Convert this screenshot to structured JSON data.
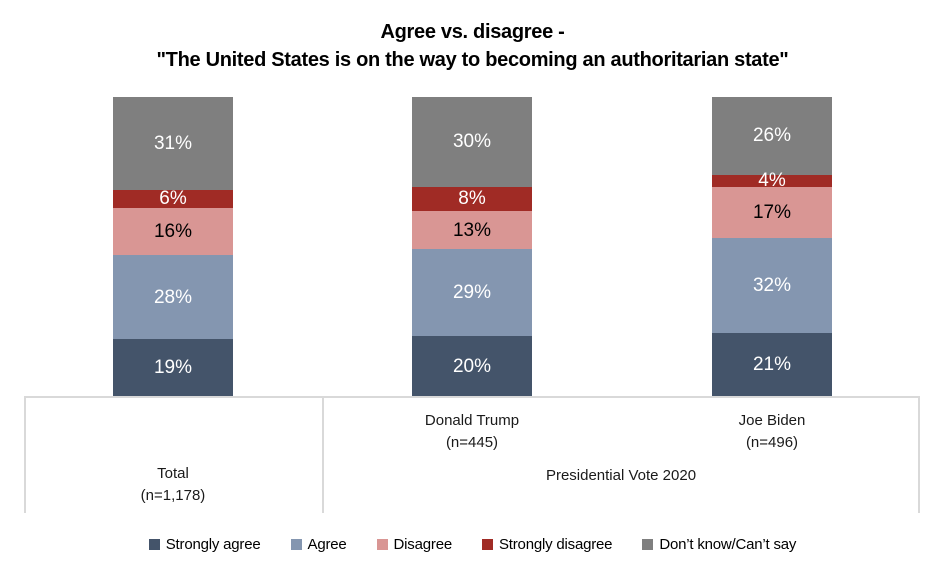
{
  "title": {
    "line1": "Agree vs. disagree -",
    "line2": "\"The United States is on the way to becoming an authoritarian state\""
  },
  "chart_data": {
    "type": "bar",
    "stacked": true,
    "orientation": "vertical",
    "value_unit": "%",
    "ylim": [
      0,
      100
    ],
    "gridlines": false,
    "value_axis_visible": false,
    "legend_position": "bottom",
    "axis_line_color": "#D9D9D9",
    "title": "Agree vs. disagree - \"The United States is on the way to becoming an authoritarian state\"",
    "categories": [
      "Total",
      "Donald Trump",
      "Joe Biden"
    ],
    "category_sublabels": [
      "(n=1,178)",
      "(n=445)",
      "(n=496)"
    ],
    "group_label": "Presidential Vote 2020",
    "group_members": [
      "Donald Trump",
      "Joe Biden"
    ],
    "data_label_format": "{value}%",
    "series": [
      {
        "name": "Strongly agree",
        "color": "#44546A",
        "label_color": "#FFFFFF",
        "values": [
          19,
          20,
          21
        ]
      },
      {
        "name": "Agree",
        "color": "#8496B0",
        "label_color": "#FFFFFF",
        "values": [
          28,
          29,
          32
        ]
      },
      {
        "name": "Disagree",
        "color": "#D99694",
        "label_color": "#000000",
        "values": [
          16,
          13,
          17
        ]
      },
      {
        "name": "Strongly disagree",
        "color": "#A02B25",
        "label_color": "#FFFFFF",
        "values": [
          6,
          8,
          4
        ]
      },
      {
        "name": "Don’t know/Can’t say",
        "color": "#7F7F7F",
        "label_color": "#FFFFFF",
        "values": [
          31,
          30,
          26
        ]
      }
    ]
  }
}
